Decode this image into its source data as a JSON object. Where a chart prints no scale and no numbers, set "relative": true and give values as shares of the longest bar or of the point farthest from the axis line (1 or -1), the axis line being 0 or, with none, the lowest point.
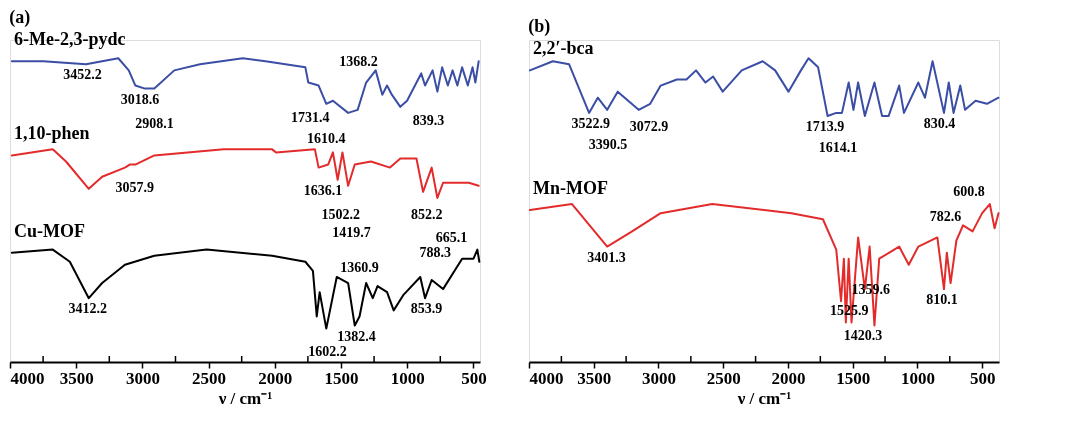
{
  "chart_data": [
    {
      "type": "line",
      "relative": true,
      "title": "(a)",
      "xlabel": "ν / cm⁻¹",
      "xlim": [
        4000,
        450
      ],
      "xticks": [
        4000,
        {
          "value": 3750,
          "label": null
        },
        3500,
        {
          "value": 3250,
          "label": null
        },
        3000,
        {
          "value": 2750,
          "label": null
        },
        2500,
        {
          "value": 2250,
          "label": null
        },
        2000,
        {
          "value": 1750,
          "label": null
        },
        1500,
        {
          "value": 1250,
          "label": null
        },
        1000,
        {
          "value": 750,
          "label": null
        },
        500
      ],
      "series": [
        {
          "name": "6-Me-2,3-pydc",
          "color": "#3b4ea6",
          "x": [
            3986,
            3749,
            3426,
            3182,
            3103,
            3053,
            2981,
            2910,
            2759,
            2565,
            2242,
            2070,
            1769,
            1747,
            1669,
            1611,
            1561,
            1446,
            1374,
            1310,
            1238,
            1188,
            1152,
            1116,
            1052,
            1001,
            894,
            865,
            808,
            772,
            736,
            693,
            657,
            621,
            585,
            542,
            506,
            485,
            460
          ],
          "values": [
            0.99,
            0.99,
            0.98,
            1.0,
            0.96,
            0.91,
            0.9,
            0.9,
            0.96,
            0.98,
            1.0,
            0.99,
            0.97,
            0.92,
            0.91,
            0.85,
            0.86,
            0.82,
            0.83,
            0.92,
            0.96,
            0.88,
            0.91,
            0.88,
            0.84,
            0.86,
            0.95,
            0.91,
            0.96,
            0.89,
            0.97,
            0.91,
            0.96,
            0.91,
            0.97,
            0.91,
            0.97,
            0.92,
            0.99
          ]
        },
        {
          "name": "1,10-phen",
          "color": "#e32b2b",
          "x": [
            3986,
            3677,
            3577,
            3405,
            3304,
            3132,
            3096,
            3053,
            2910,
            2386,
            2020,
            1991,
            1697,
            1669,
            1597,
            1561,
            1525,
            1489,
            1446,
            1396,
            1274,
            1130,
            1052,
            930,
            880,
            815,
            772,
            729,
            679,
            621,
            535,
            460
          ],
          "values": [
            0.68,
            0.7,
            0.66,
            0.57,
            0.61,
            0.64,
            0.65,
            0.65,
            0.68,
            0.7,
            0.7,
            0.69,
            0.7,
            0.64,
            0.65,
            0.69,
            0.6,
            0.69,
            0.58,
            0.65,
            0.66,
            0.64,
            0.67,
            0.67,
            0.56,
            0.64,
            0.54,
            0.59,
            0.59,
            0.59,
            0.59,
            0.58
          ]
        },
        {
          "name": "Cu-MOF",
          "color": "#000000",
          "x": [
            3986,
            3677,
            3548,
            3405,
            3304,
            3132,
            2910,
            2515,
            2020,
            1769,
            1712,
            1683,
            1661,
            1611,
            1532,
            1446,
            1396,
            1360,
            1310,
            1260,
            1224,
            1152,
            1102,
            1030,
            901,
            865,
            815,
            729,
            585,
            499,
            470,
            455
          ],
          "values": [
            0.36,
            0.37,
            0.33,
            0.21,
            0.26,
            0.32,
            0.35,
            0.37,
            0.35,
            0.33,
            0.3,
            0.15,
            0.23,
            0.11,
            0.28,
            0.26,
            0.12,
            0.15,
            0.26,
            0.21,
            0.25,
            0.23,
            0.17,
            0.22,
            0.28,
            0.21,
            0.27,
            0.24,
            0.34,
            0.34,
            0.37,
            0.33
          ]
        }
      ],
      "annotations": [
        {
          "text": "3452.2",
          "x": 3452.2,
          "y": 0.98
        },
        {
          "text": "3018.6",
          "x": 3018.6,
          "y": 0.9
        },
        {
          "text": "2908.1",
          "x": 2908.1,
          "y": 0.9
        },
        {
          "text": "1731.4",
          "x": 1731.4,
          "y": 0.92
        },
        {
          "text": "1610.4",
          "x": 1610.4,
          "y": 0.85
        },
        {
          "text": "1368.2",
          "x": 1368.2,
          "y": 0.83
        },
        {
          "text": "839.3",
          "x": 839.3,
          "y": 0.91
        },
        {
          "text": "3057.9",
          "x": 3057.9,
          "y": 0.65
        },
        {
          "text": "1636.1",
          "x": 1636.1,
          "y": 0.64
        },
        {
          "text": "1502.2",
          "x": 1502.2,
          "y": 0.6
        },
        {
          "text": "1419.7",
          "x": 1419.7,
          "y": 0.58
        },
        {
          "text": "852.2",
          "x": 852.2,
          "y": 0.56
        },
        {
          "text": "3412.2",
          "x": 3412.2,
          "y": 0.21
        },
        {
          "text": "853.9",
          "x": 853.9,
          "y": 0.21
        },
        {
          "text": "1382.4",
          "x": 1382.4,
          "y": 0.12
        },
        {
          "text": "1602.2",
          "x": 1602.2,
          "y": 0.11
        },
        {
          "text": "1360.9",
          "x": 1360.9,
          "y": 0.15
        },
        {
          "text": "788.3",
          "x": 788.3,
          "y": 0.24
        },
        {
          "text": "665.1",
          "x": 665.1,
          "y": 0.29
        }
      ]
    },
    {
      "type": "line",
      "relative": true,
      "title": "(b)",
      "xlabel": "ν / cm⁻¹",
      "xlim": [
        4000,
        370
      ],
      "xticks": [
        4000,
        {
          "value": 3750,
          "label": null
        },
        3500,
        {
          "value": 3250,
          "label": null
        },
        3000,
        {
          "value": 2750,
          "label": null
        },
        2500,
        {
          "value": 2250,
          "label": null
        },
        2000,
        {
          "value": 1750,
          "label": null
        },
        1500,
        {
          "value": 1250,
          "label": null
        },
        1000,
        {
          "value": 750,
          "label": null
        },
        500
      ],
      "series": [
        {
          "name": "2,2′-bca",
          "color": "#3b4ea6",
          "x": [
            3993,
            3816,
            3690,
            3536,
            3469,
            3396,
            3315,
            3153,
            3064,
            2983,
            2858,
            2784,
            2710,
            2637,
            2578,
            2504,
            2357,
            2195,
            2099,
            1996,
            1900,
            1841,
            1767,
            1694,
            1627,
            1583,
            1531,
            1494,
            1458,
            1406,
            1332,
            1273,
            1222,
            1141,
            1104,
            993,
            942,
            883,
            795,
            758,
            721,
            669,
            632,
            551,
            463,
            374
          ],
          "values": [
            0.96,
            0.99,
            0.98,
            0.82,
            0.87,
            0.83,
            0.89,
            0.83,
            0.85,
            0.91,
            0.93,
            0.93,
            0.96,
            0.92,
            0.94,
            0.89,
            0.96,
            0.99,
            0.96,
            0.89,
            0.96,
            1.0,
            0.97,
            0.81,
            0.82,
            0.82,
            0.92,
            0.83,
            0.92,
            0.81,
            0.92,
            0.81,
            0.81,
            0.91,
            0.82,
            0.92,
            0.87,
            0.99,
            0.82,
            0.92,
            0.82,
            0.91,
            0.83,
            0.86,
            0.85,
            0.87
          ]
        },
        {
          "name": "Mn-MOF",
          "color": "#e32b2b",
          "x": [
            3993,
            3668,
            3396,
            3204,
            2983,
            2585,
            1973,
            1730,
            1627,
            1590,
            1568,
            1553,
            1531,
            1509,
            1458,
            1406,
            1369,
            1332,
            1295,
            1141,
            1067,
            993,
            846,
            795,
            773,
            744,
            699,
            648,
            574,
            500,
            441,
            404,
            374
          ],
          "values": [
            0.5,
            0.52,
            0.38,
            0.43,
            0.49,
            0.52,
            0.49,
            0.47,
            0.37,
            0.2,
            0.34,
            0.13,
            0.34,
            0.13,
            0.41,
            0.24,
            0.38,
            0.12,
            0.34,
            0.38,
            0.32,
            0.38,
            0.41,
            0.24,
            0.36,
            0.26,
            0.4,
            0.45,
            0.43,
            0.49,
            0.52,
            0.44,
            0.49
          ]
        }
      ],
      "annotations": [
        {
          "text": "3522.9",
          "x": 3522.9,
          "y": 0.82
        },
        {
          "text": "3390.5",
          "x": 3390.5,
          "y": 0.83
        },
        {
          "text": "3072.9",
          "x": 3072.9,
          "y": 0.85
        },
        {
          "text": "1713.9",
          "x": 1713.9,
          "y": 0.81
        },
        {
          "text": "1614.1",
          "x": 1614.1,
          "y": 0.82
        },
        {
          "text": "830.4",
          "x": 830.4,
          "y": 0.82
        },
        {
          "text": "3401.3",
          "x": 3401.3,
          "y": 0.38
        },
        {
          "text": "1420.3",
          "x": 1420.3,
          "y": 0.24
        },
        {
          "text": "600.8",
          "x": 600.8,
          "y": 0.44
        },
        {
          "text": "1525.9",
          "x": 1525.9,
          "y": 0.13
        },
        {
          "text": "1359.6",
          "x": 1359.6,
          "y": 0.12
        },
        {
          "text": "810.1",
          "x": 810.1,
          "y": 0.24
        },
        {
          "text": "782.6",
          "x": 782.6,
          "y": 0.36
        }
      ]
    }
  ]
}
